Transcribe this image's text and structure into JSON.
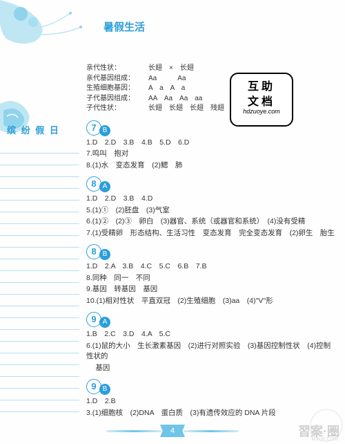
{
  "header": {
    "title": "暑假生活"
  },
  "sidebar": {
    "label": "缤 纷 假 日"
  },
  "genetics": {
    "r1_label": "亲代性状：",
    "r1_val": "长翅　×　长翅",
    "r2_label": "亲代基因组成：",
    "r2_val": "Aa　　　Aa",
    "r3_label": "生殖细胞基因：",
    "r3_val": "A　a　A　a",
    "r4_label": "子代基因组成：",
    "r4_val": "AA　Aa　Aa　aa",
    "r5_label": "子代性状：",
    "r5_val": "长翅　长翅　长翅　残翅"
  },
  "stamp": {
    "l1": "互助",
    "l2": "文档",
    "l3": "hdzuoye.com"
  },
  "days": [
    {
      "num": "7",
      "sub": "B",
      "lines": [
        "1.D　2.D　3.B　4.B　5.D　6.D",
        "7.鸣叫　抱对",
        "8.(1)水　变态发育　(2)鳃　肺"
      ]
    },
    {
      "num": "8",
      "sub": "A",
      "lines": [
        "1.D　2.D　3.B　4.D",
        "5.(1)①　(2)胚盘　(3)气室",
        "6.(1)②　(2)③　卵白　(3)器官、系统（或器官和系统）　(4)没有受精",
        "7.(1)受精卵　形态结构、生活习性　变态发育　完全变态发育　(2)卵生　胎生"
      ]
    },
    {
      "num": "8",
      "sub": "B",
      "lines": [
        "1.D　2.A　3.B　4.C　5.C　6.B　7.B",
        "8.同种　同一　不同",
        "9.基因　转基因　基因",
        "10.(1)相对性状　平直双冠　(2)生殖细胞　(3)aa　(4)\"V\"形"
      ]
    },
    {
      "num": "9",
      "sub": "A",
      "lines": [
        "1.B　2.C　3.D　4.A　5.C",
        "6.(1)鼠的大小　生长激素基因　(2)进行对照实验　(3)基因控制性状　(4)控制性状的",
        "　 基因"
      ]
    },
    {
      "num": "9",
      "sub": "B",
      "lines": [
        "1.D　2.B",
        "3.(1)细胞核　(2)DNA　蛋白质　(3)有遗传效应的 DNA 片段"
      ]
    }
  ],
  "footer": {
    "page": "4",
    "wm1": "習案·圈",
    "wm2": "MXUE.COM"
  },
  "colors": {
    "accent": "#2b9ed9"
  }
}
